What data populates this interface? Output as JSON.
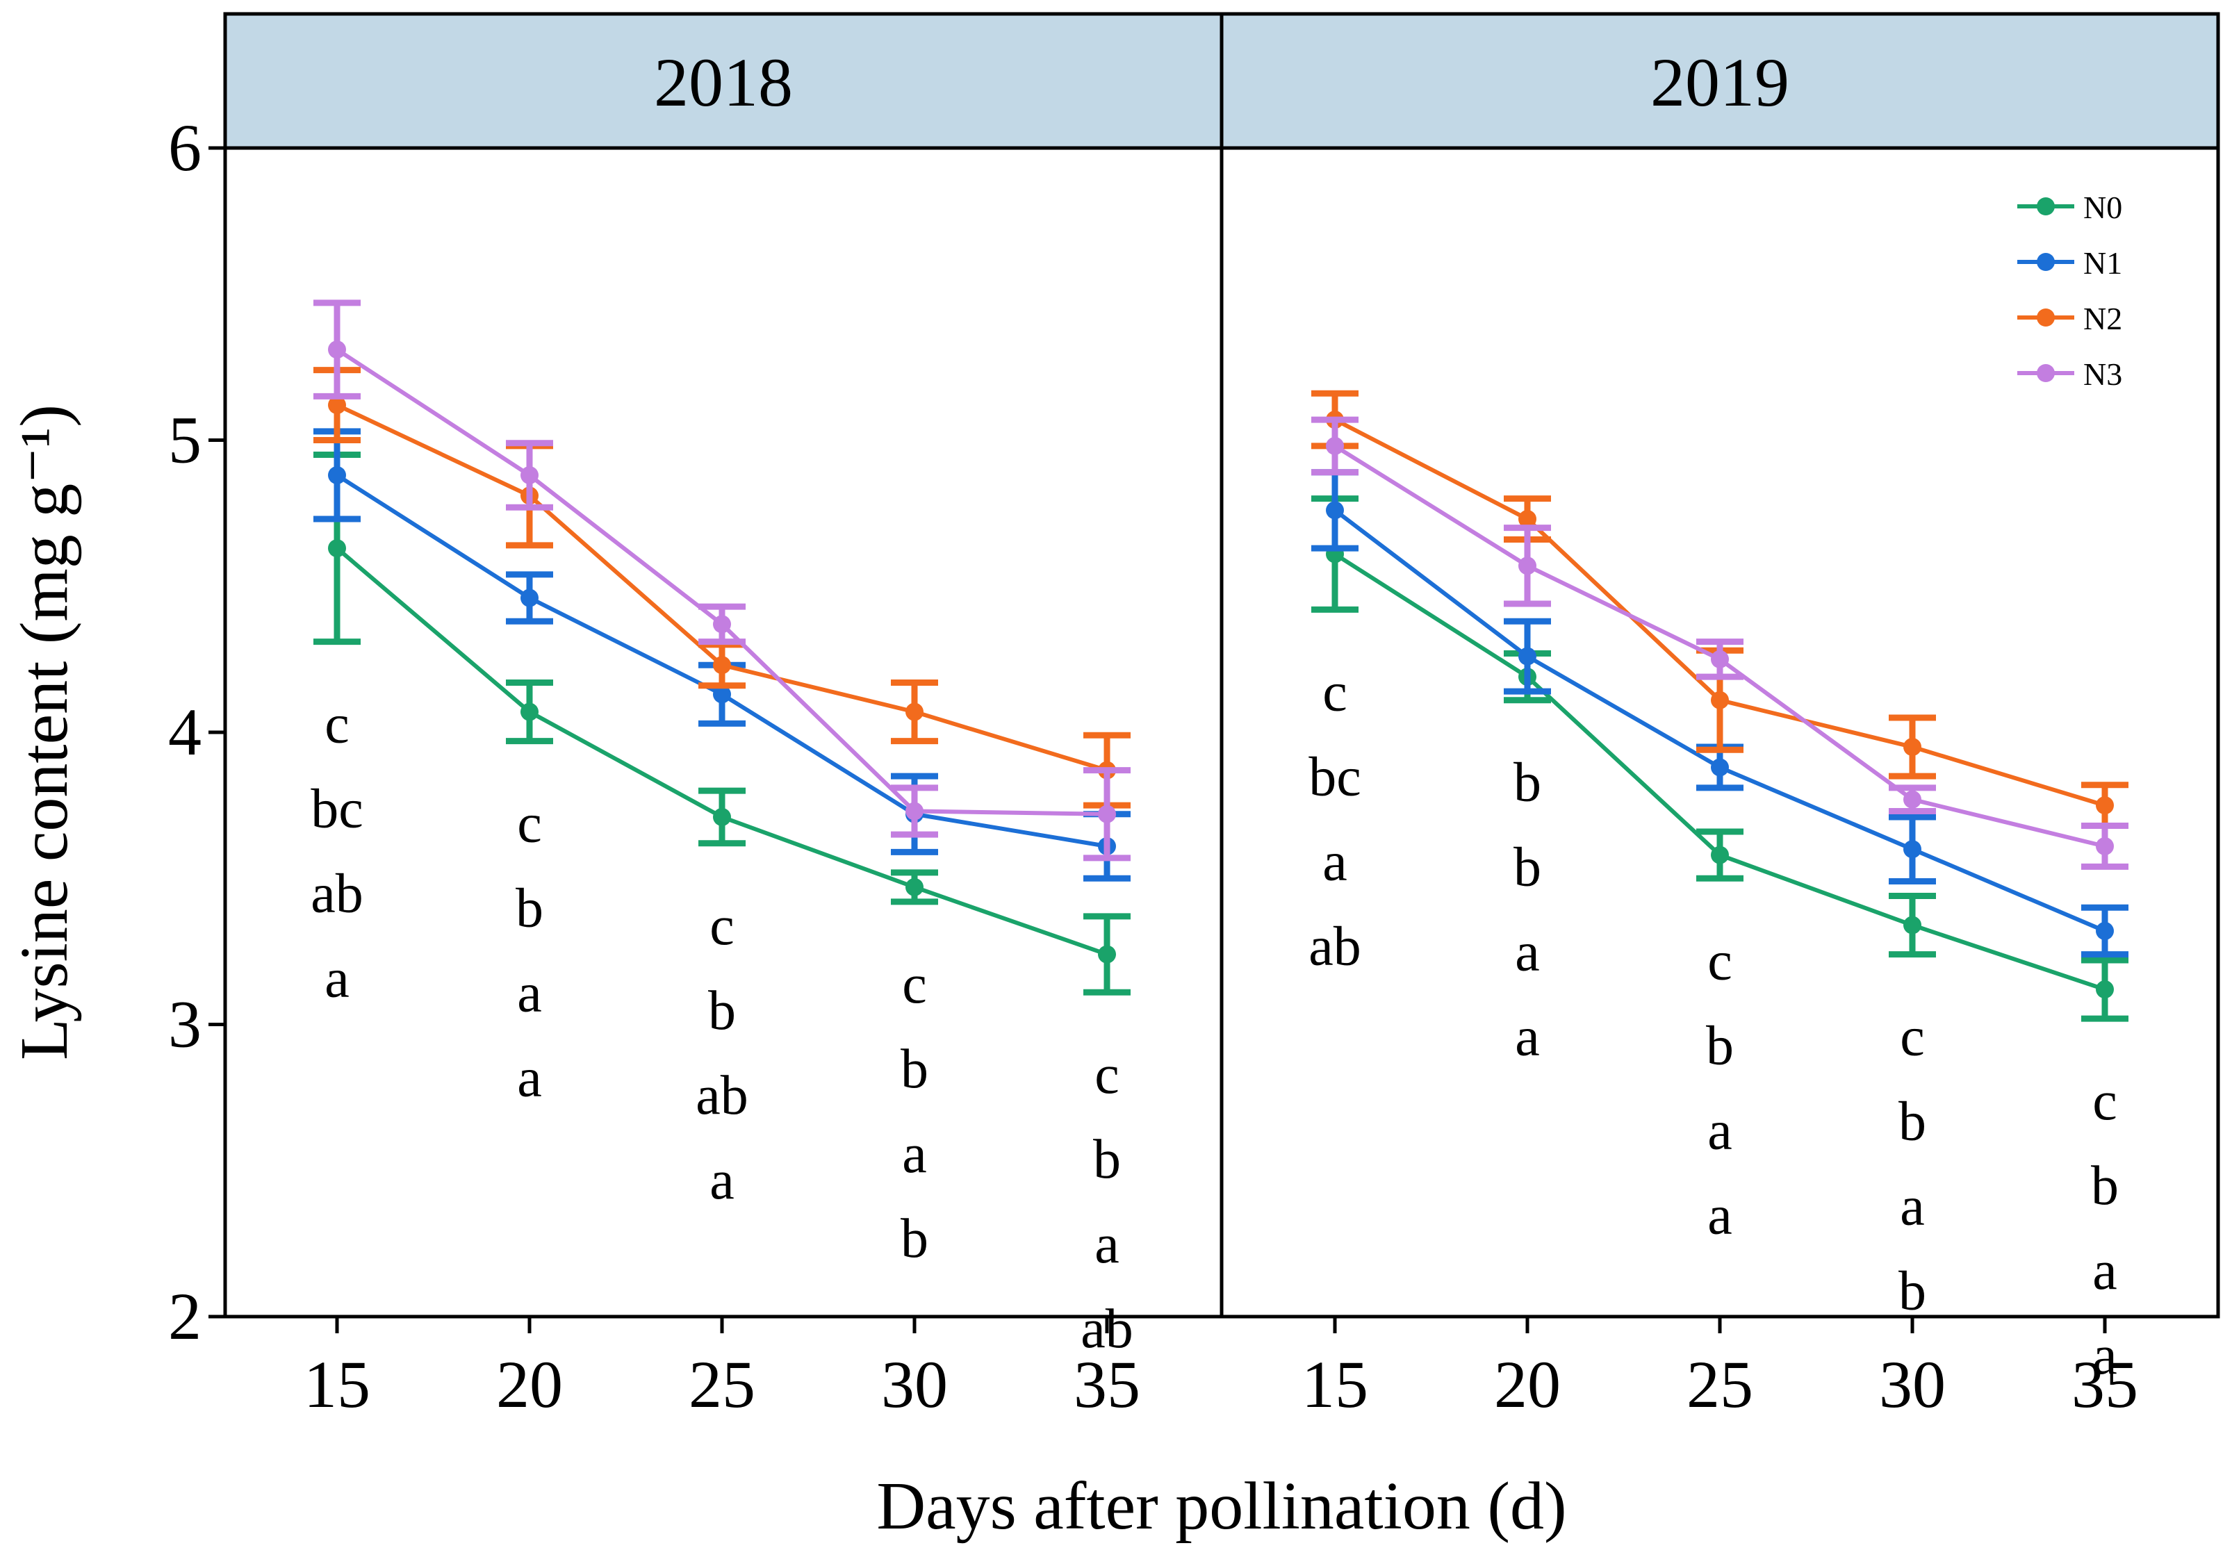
{
  "chart_data": {
    "type": "line",
    "ylabel": "Lysine content (mg g⁻¹)",
    "xlabel": "Days after pollination (d)",
    "x": [
      15,
      20,
      25,
      30,
      35
    ],
    "ylim": [
      2,
      6
    ],
    "yticks": [
      2,
      3,
      4,
      5,
      6
    ],
    "legend_position": "top-right",
    "series_colors": {
      "N0": "#1aa36a",
      "N1": "#1c6fd6",
      "N2": "#f26b1d",
      "N3": "#c37ee0"
    },
    "legend": [
      "N0",
      "N1",
      "N2",
      "N3"
    ],
    "panels": [
      {
        "title": "2018",
        "series": [
          {
            "name": "N0",
            "values": [
              4.63,
              4.07,
              3.71,
              3.47,
              3.24
            ],
            "errors": [
              0.32,
              0.1,
              0.09,
              0.05,
              0.13
            ]
          },
          {
            "name": "N1",
            "values": [
              4.88,
              4.46,
              4.13,
              3.72,
              3.61
            ],
            "errors": [
              0.15,
              0.08,
              0.1,
              0.13,
              0.11
            ]
          },
          {
            "name": "N2",
            "values": [
              5.12,
              4.81,
              4.23,
              4.07,
              3.87
            ],
            "errors": [
              0.12,
              0.17,
              0.07,
              0.1,
              0.12
            ]
          },
          {
            "name": "N3",
            "values": [
              5.31,
              4.88,
              4.37,
              3.73,
              3.72
            ],
            "errors": [
              0.16,
              0.11,
              0.06,
              0.08,
              0.15
            ]
          }
        ],
        "letters": [
          [
            "c",
            "bc",
            "ab",
            "a"
          ],
          [
            "c",
            "b",
            "a",
            "a"
          ],
          [
            "c",
            "b",
            "ab",
            "a"
          ],
          [
            "c",
            "b",
            "a",
            "b"
          ],
          [
            "c",
            "b",
            "a",
            "ab"
          ]
        ]
      },
      {
        "title": "2019",
        "series": [
          {
            "name": "N0",
            "values": [
              4.61,
              4.19,
              3.58,
              3.34,
              3.12
            ],
            "errors": [
              0.19,
              0.08,
              0.08,
              0.1,
              0.1
            ]
          },
          {
            "name": "N1",
            "values": [
              4.76,
              4.26,
              3.88,
              3.6,
              3.32
            ],
            "errors": [
              0.13,
              0.12,
              0.07,
              0.11,
              0.08
            ]
          },
          {
            "name": "N2",
            "values": [
              5.07,
              4.73,
              4.11,
              3.95,
              3.75
            ],
            "errors": [
              0.09,
              0.07,
              0.17,
              0.1,
              0.07
            ]
          },
          {
            "name": "N3",
            "values": [
              4.98,
              4.57,
              4.25,
              3.77,
              3.61
            ],
            "errors": [
              0.09,
              0.13,
              0.06,
              0.04,
              0.07
            ]
          }
        ],
        "letters": [
          [
            "c",
            "bc",
            "a",
            "ab"
          ],
          [
            "b",
            "b",
            "a",
            "a"
          ],
          [
            "c",
            "b",
            "a",
            "a"
          ],
          [
            "c",
            "b",
            "a",
            "b"
          ],
          [
            "c",
            "b",
            "a",
            "a"
          ]
        ]
      }
    ]
  }
}
